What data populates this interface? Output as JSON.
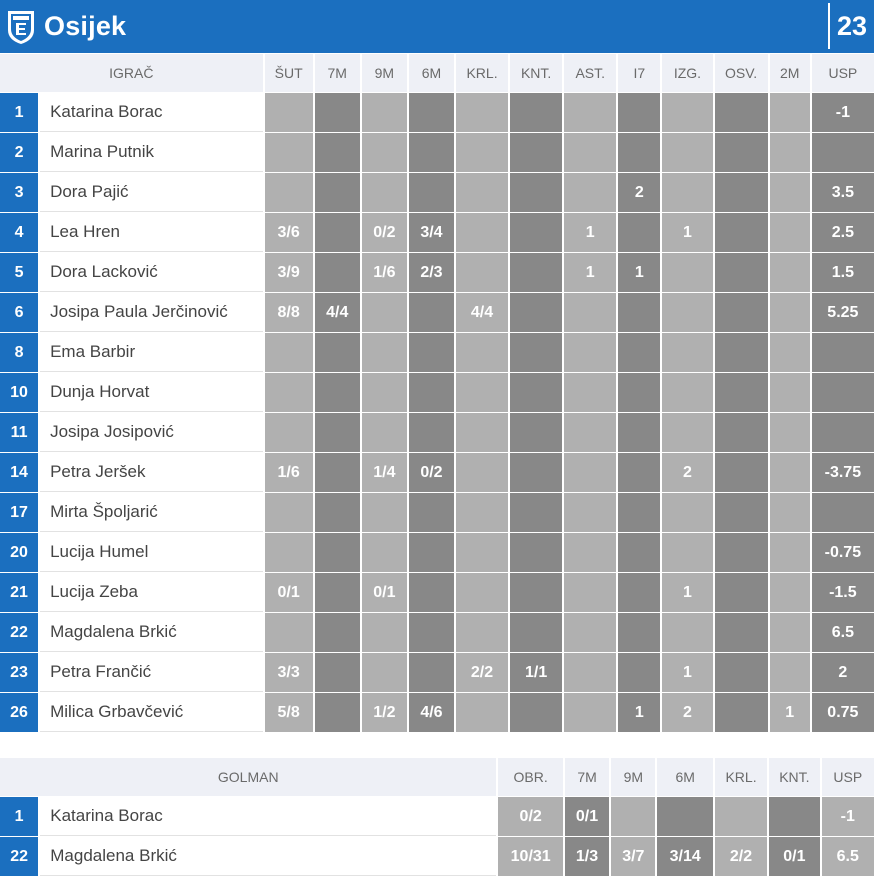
{
  "team": {
    "name": "Osijek",
    "score": "23",
    "logo_icon": "club-crest-icon"
  },
  "colors": {
    "header": "#1b6fbf",
    "light_cell": "#b0b0b0",
    "dark_cell": "#888888"
  },
  "players": {
    "columns": [
      "IGRAČ",
      "ŠUT",
      "7M",
      "9M",
      "6M",
      "KRL.",
      "KNT.",
      "AST.",
      "I7",
      "IZG.",
      "OSV.",
      "2M",
      "USP"
    ],
    "rows": [
      {
        "num": "1",
        "name": "Katarina Borac",
        "stats": [
          "",
          "",
          "",
          "",
          "",
          "",
          "",
          "",
          "",
          "",
          "",
          "-1"
        ]
      },
      {
        "num": "2",
        "name": "Marina Putnik",
        "stats": [
          "",
          "",
          "",
          "",
          "",
          "",
          "",
          "",
          "",
          "",
          "",
          ""
        ]
      },
      {
        "num": "3",
        "name": "Dora Pajić",
        "stats": [
          "",
          "",
          "",
          "",
          "",
          "",
          "",
          "2",
          "",
          "",
          "",
          "3.5"
        ]
      },
      {
        "num": "4",
        "name": "Lea Hren",
        "stats": [
          "3/6",
          "",
          "0/2",
          "3/4",
          "",
          "",
          "1",
          "",
          "1",
          "",
          "",
          "2.5"
        ]
      },
      {
        "num": "5",
        "name": "Dora Lacković",
        "stats": [
          "3/9",
          "",
          "1/6",
          "2/3",
          "",
          "",
          "1",
          "1",
          "",
          "",
          "",
          "1.5"
        ]
      },
      {
        "num": "6",
        "name": "Josipa Paula Jerčinović",
        "stats": [
          "8/8",
          "4/4",
          "",
          "",
          "4/4",
          "",
          "",
          "",
          "",
          "",
          "",
          "5.25"
        ]
      },
      {
        "num": "8",
        "name": "Ema Barbir",
        "stats": [
          "",
          "",
          "",
          "",
          "",
          "",
          "",
          "",
          "",
          "",
          "",
          ""
        ]
      },
      {
        "num": "10",
        "name": "Dunja Horvat",
        "stats": [
          "",
          "",
          "",
          "",
          "",
          "",
          "",
          "",
          "",
          "",
          "",
          ""
        ]
      },
      {
        "num": "11",
        "name": "Josipa Josipović",
        "stats": [
          "",
          "",
          "",
          "",
          "",
          "",
          "",
          "",
          "",
          "",
          "",
          ""
        ]
      },
      {
        "num": "14",
        "name": "Petra Jeršek",
        "stats": [
          "1/6",
          "",
          "1/4",
          "0/2",
          "",
          "",
          "",
          "",
          "2",
          "",
          "",
          "-3.75"
        ]
      },
      {
        "num": "17",
        "name": "Mirta Špoljarić",
        "stats": [
          "",
          "",
          "",
          "",
          "",
          "",
          "",
          "",
          "",
          "",
          "",
          ""
        ]
      },
      {
        "num": "20",
        "name": "Lucija Humel",
        "stats": [
          "",
          "",
          "",
          "",
          "",
          "",
          "",
          "",
          "",
          "",
          "",
          "-0.75"
        ]
      },
      {
        "num": "21",
        "name": "Lucija Zeba",
        "stats": [
          "0/1",
          "",
          "0/1",
          "",
          "",
          "",
          "",
          "",
          "1",
          "",
          "",
          "-1.5"
        ]
      },
      {
        "num": "22",
        "name": "Magdalena Brkić",
        "stats": [
          "",
          "",
          "",
          "",
          "",
          "",
          "",
          "",
          "",
          "",
          "",
          "6.5"
        ]
      },
      {
        "num": "23",
        "name": "Petra Frančić",
        "stats": [
          "3/3",
          "",
          "",
          "",
          "2/2",
          "1/1",
          "",
          "",
          "1",
          "",
          "",
          "2"
        ]
      },
      {
        "num": "26",
        "name": "Milica Grbavčević",
        "stats": [
          "5/8",
          "",
          "1/2",
          "4/6",
          "",
          "",
          "",
          "1",
          "2",
          "",
          "1",
          "0.75"
        ]
      }
    ]
  },
  "goalkeepers": {
    "columns": [
      "GOLMAN",
      "OBR.",
      "7M",
      "9M",
      "6M",
      "KRL.",
      "KNT.",
      "USP"
    ],
    "rows": [
      {
        "num": "1",
        "name": "Katarina Borac",
        "stats": [
          "0/2",
          "0/1",
          "",
          "",
          "",
          "",
          "-1"
        ]
      },
      {
        "num": "22",
        "name": "Magdalena Brkić",
        "stats": [
          "10/31",
          "1/3",
          "3/7",
          "3/14",
          "2/2",
          "0/1",
          "6.5"
        ]
      }
    ]
  }
}
